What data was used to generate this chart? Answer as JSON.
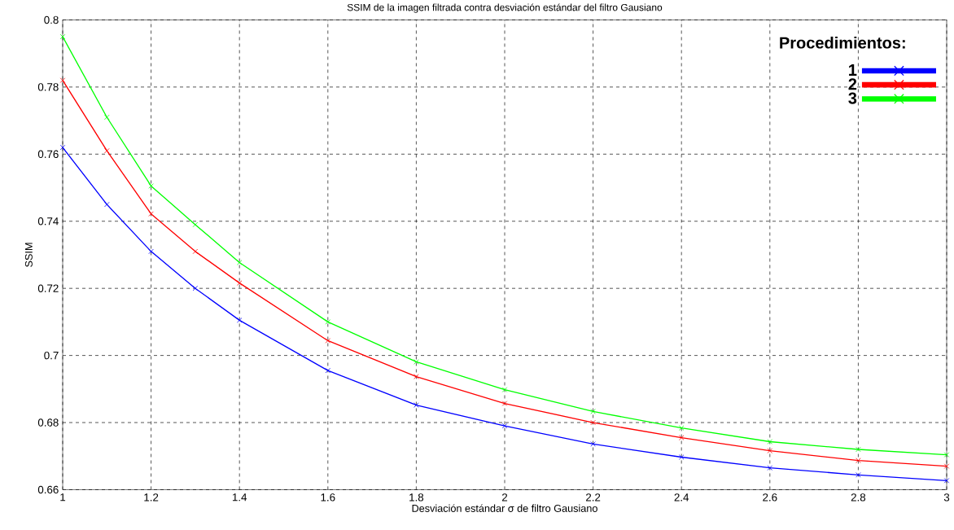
{
  "chart_data": {
    "type": "line",
    "title": "SSIM de la imagen filtrada contra desviación estándar del filtro Gausiano",
    "xlabel": "Desviación estándar σ de filtro Gausiano",
    "ylabel": "SSIM",
    "legend_title": "Procedimientos:",
    "x": [
      1,
      1.1,
      1.2,
      1.3,
      1.4,
      1.6,
      1.8,
      2,
      2.2,
      2.4,
      2.6,
      2.8,
      3
    ],
    "series": [
      {
        "name": "1",
        "color": "#0000ff",
        "values": [
          0.762,
          0.745,
          0.731,
          0.72,
          0.7105,
          0.6955,
          0.6852,
          0.679,
          0.6736,
          0.6697,
          0.6665,
          0.6644,
          0.6627
        ]
      },
      {
        "name": "2",
        "color": "#ff0000",
        "values": [
          0.782,
          0.761,
          0.7422,
          0.731,
          0.7216,
          0.7044,
          0.6937,
          0.6857,
          0.68,
          0.6755,
          0.6716,
          0.6687,
          0.667
        ]
      },
      {
        "name": "3",
        "color": "#00ff00",
        "values": [
          0.795,
          0.771,
          0.7505,
          0.739,
          0.7277,
          0.71,
          0.6981,
          0.6898,
          0.6833,
          0.6784,
          0.6743,
          0.672,
          0.6704
        ]
      }
    ],
    "xlim": [
      1,
      3
    ],
    "ylim": [
      0.66,
      0.8
    ],
    "xticks": [
      1,
      1.2,
      1.4,
      1.6,
      1.8,
      2,
      2.2,
      2.4,
      2.6,
      2.8,
      3
    ],
    "yticks": [
      0.66,
      0.68,
      0.7,
      0.72,
      0.74,
      0.76,
      0.78,
      0.8
    ],
    "grid": true,
    "legend": "top right",
    "marker": "cross",
    "line_style": "solid"
  }
}
